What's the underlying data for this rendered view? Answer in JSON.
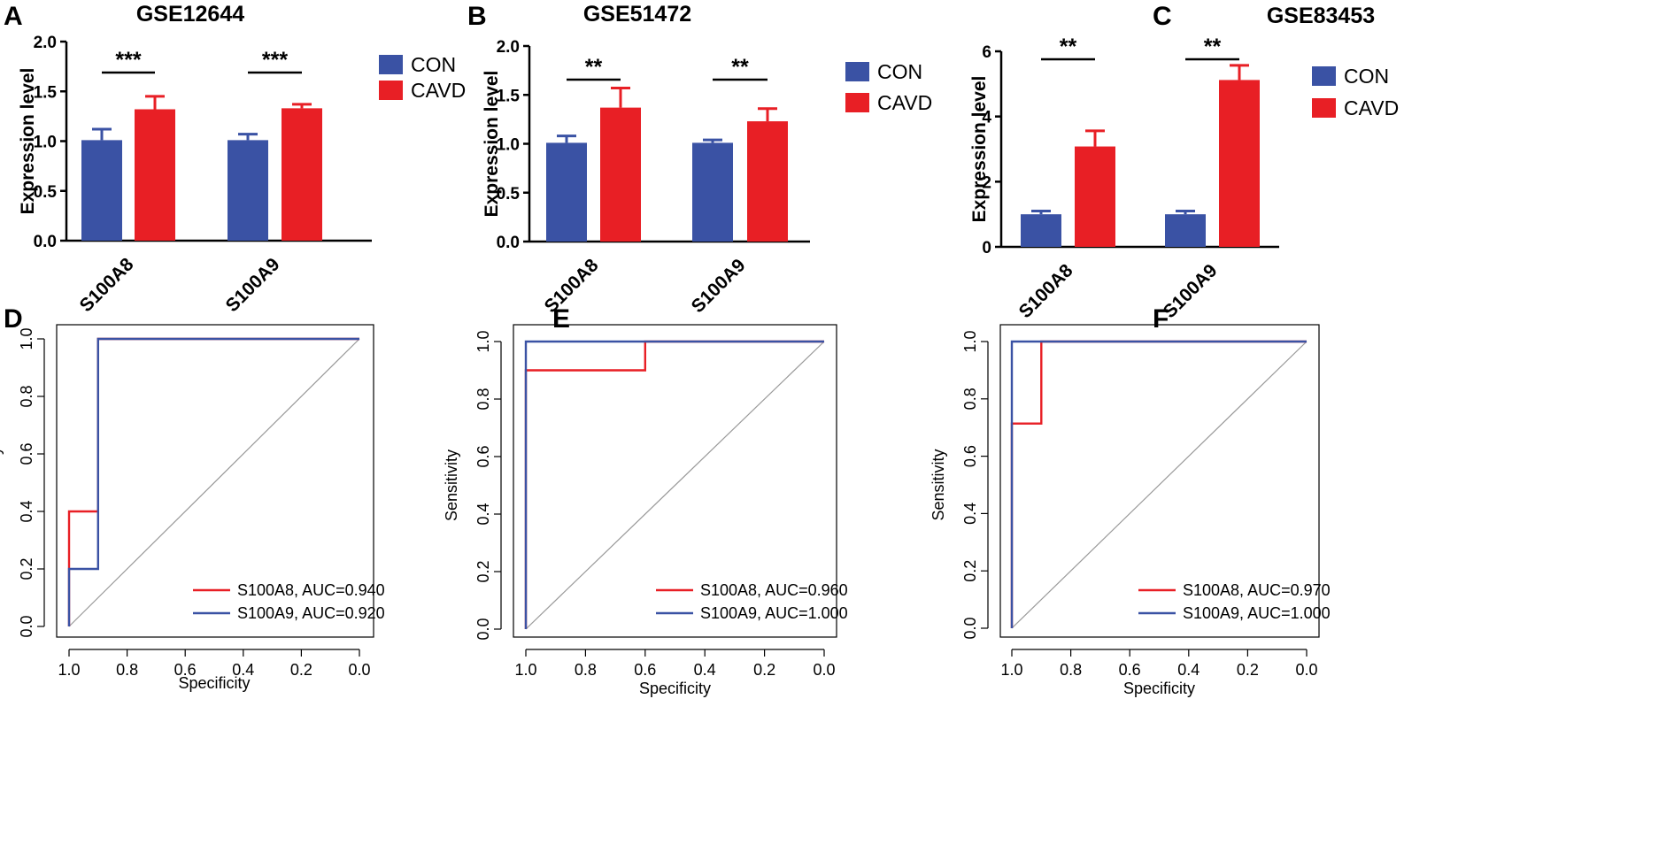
{
  "chart_data": [
    {
      "type": "bar",
      "panel": "A",
      "title": "GSE12644",
      "ylabel": "Expression level",
      "ylim": [
        0,
        2.0
      ],
      "yticks": [
        "0.0",
        "0.5",
        "1.0",
        "1.5",
        "2.0"
      ],
      "categories": [
        "S100A8",
        "S100A9"
      ],
      "series": [
        {
          "name": "CON",
          "color": "#3a52a4",
          "values": [
            1.01,
            1.01
          ],
          "errors": [
            0.11,
            0.06
          ]
        },
        {
          "name": "CAVD",
          "color": "#e81f25",
          "values": [
            1.32,
            1.33
          ],
          "errors": [
            0.13,
            0.04
          ]
        }
      ],
      "significance": [
        "***",
        "***"
      ]
    },
    {
      "type": "bar",
      "panel": "B",
      "title": "GSE51472",
      "ylabel": "Expression level",
      "ylim": [
        0,
        2.0
      ],
      "yticks": [
        "0.0",
        "0.5",
        "1.0",
        "1.5",
        "2.0"
      ],
      "categories": [
        "S100A8",
        "S100A9"
      ],
      "series": [
        {
          "name": "CON",
          "color": "#3a52a4",
          "values": [
            1.01,
            1.01
          ],
          "errors": [
            0.07,
            0.03
          ]
        },
        {
          "name": "CAVD",
          "color": "#e81f25",
          "values": [
            1.37,
            1.23
          ],
          "errors": [
            0.2,
            0.13
          ]
        }
      ],
      "significance": [
        "**",
        "**"
      ]
    },
    {
      "type": "bar",
      "panel": "C",
      "title": "GSE83453",
      "ylabel": "Expression level",
      "ylim": [
        0,
        6
      ],
      "yticks": [
        "0",
        "2",
        "4",
        "6"
      ],
      "categories": [
        "S100A8",
        "S100A9"
      ],
      "series": [
        {
          "name": "CON",
          "color": "#3a52a4",
          "values": [
            1.0,
            1.0
          ],
          "errors": [
            0.1,
            0.1
          ]
        },
        {
          "name": "CAVD",
          "color": "#e81f25",
          "values": [
            3.08,
            5.12
          ],
          "errors": [
            0.48,
            0.45
          ]
        }
      ],
      "significance": [
        "**",
        "**"
      ]
    },
    {
      "type": "line",
      "panel": "D",
      "xlabel": "Specificity",
      "ylabel": "Sensitivity",
      "xlim": [
        1.0,
        0.0
      ],
      "ylim": [
        0.0,
        1.0
      ],
      "xticks": [
        "1.0",
        "0.8",
        "0.6",
        "0.4",
        "0.2",
        "0.0"
      ],
      "yticks": [
        "0.0",
        "0.2",
        "0.4",
        "0.6",
        "0.8",
        "1.0"
      ],
      "diagonal": true,
      "series": [
        {
          "name": "S100A8",
          "label": "S100A8, AUC=0.940",
          "auc": 0.94,
          "color": "#e81f25",
          "x": [
            1.0,
            1.0,
            0.9,
            0.9,
            0.9,
            0.0
          ],
          "y": [
            0.0,
            0.4,
            0.4,
            0.6,
            1.0,
            1.0
          ]
        },
        {
          "name": "S100A9",
          "label": "S100A9, AUC=0.920",
          "auc": 0.92,
          "color": "#3a52a4",
          "x": [
            1.0,
            1.0,
            0.9,
            0.9,
            0.0
          ],
          "y": [
            0.0,
            0.2,
            0.2,
            1.0,
            1.0
          ]
        }
      ]
    },
    {
      "type": "line",
      "panel": "E",
      "xlabel": "Specificity",
      "ylabel": "Sensitivity",
      "xlim": [
        1.0,
        0.0
      ],
      "ylim": [
        0.0,
        1.0
      ],
      "xticks": [
        "1.0",
        "0.8",
        "0.6",
        "0.4",
        "0.2",
        "0.0"
      ],
      "yticks": [
        "0.0",
        "0.2",
        "0.4",
        "0.6",
        "0.8",
        "1.0"
      ],
      "diagonal": true,
      "series": [
        {
          "name": "S100A8",
          "label": "S100A8, AUC=0.960",
          "auc": 0.96,
          "color": "#e81f25",
          "x": [
            1.0,
            1.0,
            0.6,
            0.6,
            0.0
          ],
          "y": [
            0.0,
            0.9,
            0.9,
            1.0,
            1.0
          ]
        },
        {
          "name": "S100A9",
          "label": "S100A9, AUC=1.000",
          "auc": 1.0,
          "color": "#3a52a4",
          "x": [
            1.0,
            1.0,
            0.0
          ],
          "y": [
            0.0,
            1.0,
            1.0
          ]
        }
      ]
    },
    {
      "type": "line",
      "panel": "F",
      "xlabel": "Specificity",
      "ylabel": "Sensitivity",
      "xlim": [
        1.0,
        0.0
      ],
      "ylim": [
        0.0,
        1.0
      ],
      "xticks": [
        "1.0",
        "0.8",
        "0.6",
        "0.4",
        "0.2",
        "0.0"
      ],
      "yticks": [
        "0.0",
        "0.2",
        "0.4",
        "0.6",
        "0.8",
        "1.0"
      ],
      "diagonal": true,
      "series": [
        {
          "name": "S100A8",
          "label": "S100A8, AUC=0.970",
          "auc": 0.97,
          "color": "#e81f25",
          "x": [
            1.0,
            1.0,
            0.9,
            0.9,
            0.0
          ],
          "y": [
            0.0,
            0.714,
            0.714,
            1.0,
            1.0
          ]
        },
        {
          "name": "S100A9",
          "label": "S100A9, AUC=1.000",
          "auc": 1.0,
          "color": "#3a52a4",
          "x": [
            1.0,
            1.0,
            0.0
          ],
          "y": [
            0.0,
            1.0,
            1.0
          ]
        }
      ]
    }
  ]
}
